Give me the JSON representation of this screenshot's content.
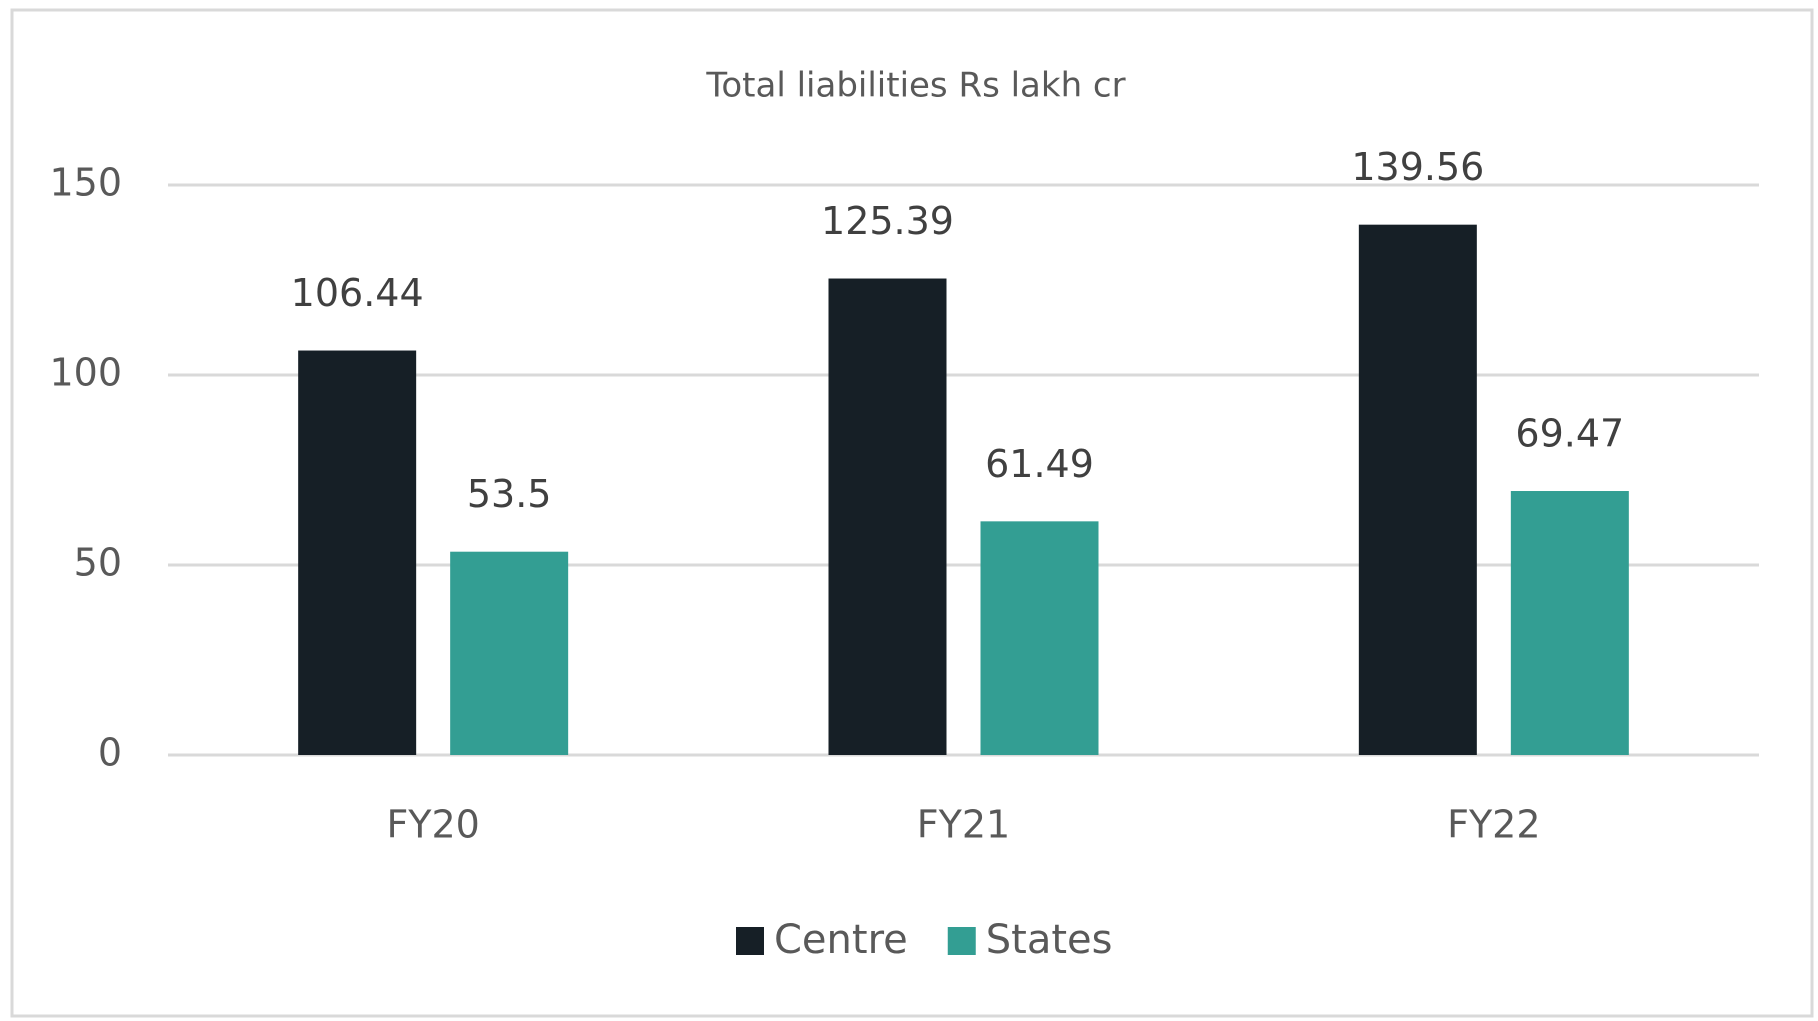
{
  "chart_data": {
    "type": "bar",
    "title": "Total liabilities Rs lakh cr",
    "categories": [
      "FY20",
      "FY21",
      "FY22"
    ],
    "series": [
      {
        "name": "Centre",
        "color": "#161f26",
        "values": [
          106.44,
          125.39,
          139.56
        ]
      },
      {
        "name": "States",
        "color": "#339e93",
        "values": [
          53.5,
          61.49,
          69.47
        ]
      }
    ],
    "ylim": [
      0,
      150
    ],
    "yticks": [
      0,
      50,
      100,
      150
    ],
    "grid": true,
    "legend": "bottom"
  }
}
